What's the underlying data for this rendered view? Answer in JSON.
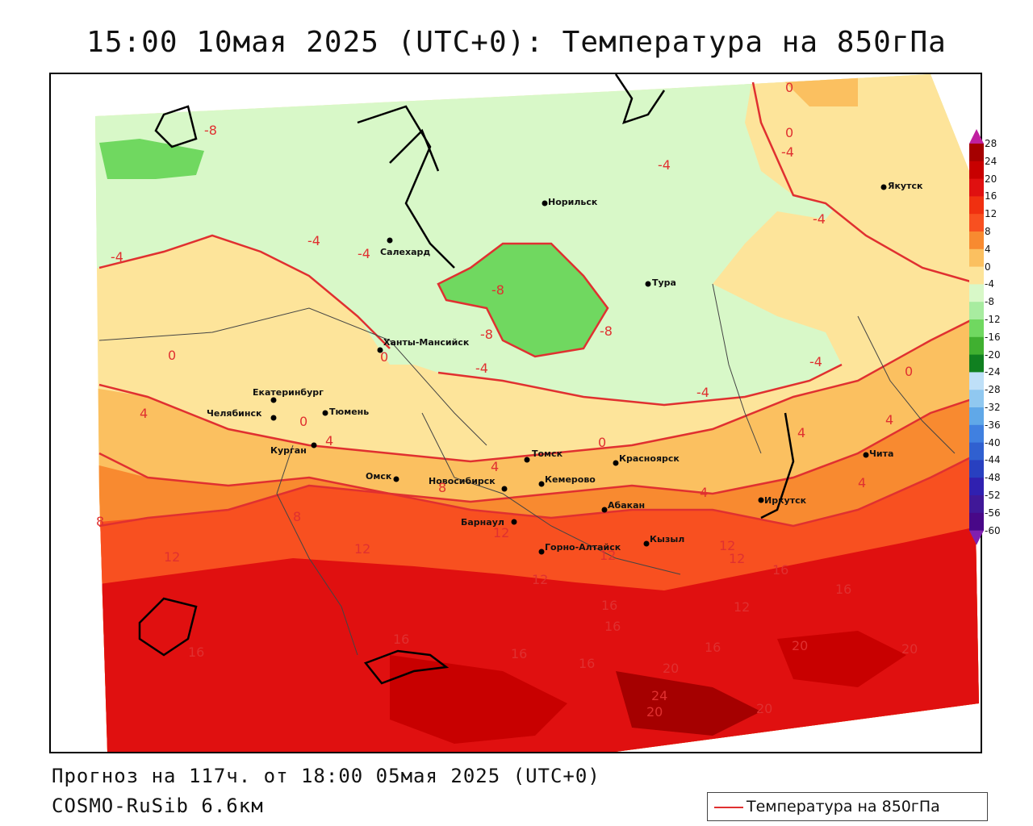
{
  "header": {
    "title": "15:00 10мая 2025 (UTC+0): Температура на 850гПа"
  },
  "footer": {
    "forecast": "Прогноз на 117ч. от 18:00 05мая 2025 (UTC+0)",
    "model": "COSMO-RuSib 6.6км"
  },
  "legend": {
    "line_label": "Температура на 850гПа",
    "line_color": "#e03030"
  },
  "colorbar": {
    "labels": [
      "28",
      "24",
      "20",
      "16",
      "12",
      "8",
      "4",
      "0",
      "-4",
      "-8",
      "-12",
      "-16",
      "-20",
      "-24",
      "-28",
      "-32",
      "-36",
      "-40",
      "-44",
      "-48",
      "-52",
      "-56",
      "-60"
    ],
    "colors": [
      "#a50000",
      "#c80000",
      "#e01010",
      "#f03010",
      "#f85020",
      "#f88a30",
      "#fbc060",
      "#fde49a",
      "#d8f8c8",
      "#a8eca0",
      "#70d860",
      "#40b030",
      "#108020",
      "#bfe0f8",
      "#90c8f0",
      "#60a8e8",
      "#4080e0",
      "#3060d0",
      "#2840c0",
      "#3020b0",
      "#401898",
      "#480888"
    ]
  },
  "cities": [
    {
      "name": "Норильск"
    },
    {
      "name": "Салехард"
    },
    {
      "name": "Тура"
    },
    {
      "name": "Якутск"
    },
    {
      "name": "Ханты-Мансийск"
    },
    {
      "name": "Екатеринбург"
    },
    {
      "name": "Тюмень"
    },
    {
      "name": "Челябинск"
    },
    {
      "name": "Курган"
    },
    {
      "name": "Омск"
    },
    {
      "name": "Новосибирск"
    },
    {
      "name": "Томск"
    },
    {
      "name": "Кемерово"
    },
    {
      "name": "Красноярск"
    },
    {
      "name": "Абакан"
    },
    {
      "name": "Барнаул"
    },
    {
      "name": "Горно-Алтайск"
    },
    {
      "name": "Кызыл"
    },
    {
      "name": "Иркутск"
    },
    {
      "name": "Чита"
    }
  ],
  "isoline_labels": [
    "-8",
    "-4",
    "-4",
    "-4",
    "-4",
    "-4",
    "-8",
    "-8",
    "-8",
    "-4",
    "-4",
    "-4",
    "-4",
    "0",
    "0",
    "0",
    "0",
    "0",
    "0",
    "0",
    "4",
    "4",
    "4",
    "4",
    "4",
    "4",
    "4",
    "8",
    "8",
    "8",
    "12",
    "12",
    "12",
    "12",
    "12",
    "12",
    "12",
    "12",
    "16",
    "16",
    "16",
    "16",
    "16",
    "16",
    "16",
    "16",
    "16",
    "20",
    "20",
    "20",
    "20",
    "20",
    "24"
  ]
}
